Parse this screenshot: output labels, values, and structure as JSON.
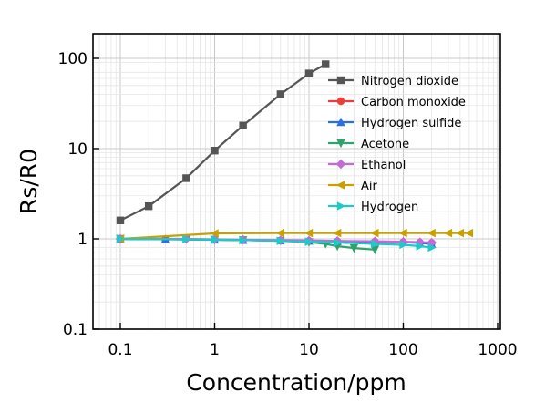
{
  "chart_data": {
    "type": "line",
    "title": "",
    "xlabel": "Concentration/ppm",
    "ylabel": "Rs/R0",
    "x_scale": "log",
    "y_scale": "log",
    "xlim": [
      0.05,
      1000
    ],
    "ylim": [
      0.1,
      200
    ],
    "x_ticks": [
      "0.1",
      "1",
      "10",
      "100",
      "1000"
    ],
    "x_tick_values": [
      0.1,
      1,
      10,
      100,
      1000
    ],
    "y_ticks": [
      "0.1",
      "1",
      "10",
      "100"
    ],
    "y_tick_values": [
      0.1,
      1,
      10,
      100
    ],
    "grid": true,
    "legend_position": "top-right",
    "series": [
      {
        "name": "Nitrogen dioxide",
        "color": "#555555",
        "marker": "square",
        "x": [
          0.1,
          0.2,
          0.5,
          1,
          2,
          5,
          10,
          15
        ],
        "y": [
          1.6,
          2.3,
          4.7,
          9.5,
          18,
          40,
          68,
          86
        ]
      },
      {
        "name": "Carbon monoxide",
        "color": "#f03b3b",
        "marker": "circle",
        "x": [
          0.1,
          0.3,
          1,
          2,
          5,
          10,
          20,
          50,
          100,
          150,
          200
        ],
        "y": [
          1.0,
          0.99,
          0.98,
          0.97,
          0.96,
          0.95,
          0.94,
          0.93,
          0.92,
          0.91,
          0.9
        ]
      },
      {
        "name": "Hydrogen sulfide",
        "color": "#2a6fdb",
        "marker": "triangle-up",
        "x": [
          0.1,
          0.3,
          1,
          2,
          5,
          10,
          20,
          50,
          100,
          150,
          200
        ],
        "y": [
          1.0,
          0.99,
          0.98,
          0.97,
          0.96,
          0.95,
          0.94,
          0.93,
          0.92,
          0.9,
          0.88
        ]
      },
      {
        "name": "Acetone",
        "color": "#2fa36b",
        "marker": "triangle-down",
        "x": [
          0.1,
          0.5,
          1,
          2,
          5,
          10,
          15,
          20,
          30,
          50
        ],
        "y": [
          1.0,
          0.99,
          0.98,
          0.97,
          0.95,
          0.92,
          0.88,
          0.83,
          0.79,
          0.76
        ]
      },
      {
        "name": "Ethanol",
        "color": "#c06bd8",
        "marker": "diamond",
        "x": [
          0.1,
          0.5,
          1,
          2,
          5,
          10,
          20,
          50,
          100,
          150,
          200
        ],
        "y": [
          1.0,
          1.0,
          0.99,
          0.98,
          0.97,
          0.96,
          0.95,
          0.94,
          0.93,
          0.92,
          0.91
        ]
      },
      {
        "name": "Air",
        "color": "#c9a000",
        "marker": "triangle-left",
        "x": [
          0.1,
          1,
          5,
          10,
          20,
          50,
          100,
          200,
          300,
          400,
          500
        ],
        "y": [
          1.0,
          1.15,
          1.16,
          1.16,
          1.16,
          1.16,
          1.16,
          1.16,
          1.16,
          1.16,
          1.16
        ]
      },
      {
        "name": "Hydrogen",
        "color": "#1fc9c9",
        "marker": "triangle-right",
        "x": [
          0.1,
          0.5,
          1,
          2,
          5,
          10,
          20,
          50,
          100,
          150,
          200
        ],
        "y": [
          1.0,
          0.99,
          0.98,
          0.97,
          0.95,
          0.93,
          0.91,
          0.88,
          0.86,
          0.83,
          0.8
        ]
      }
    ]
  }
}
